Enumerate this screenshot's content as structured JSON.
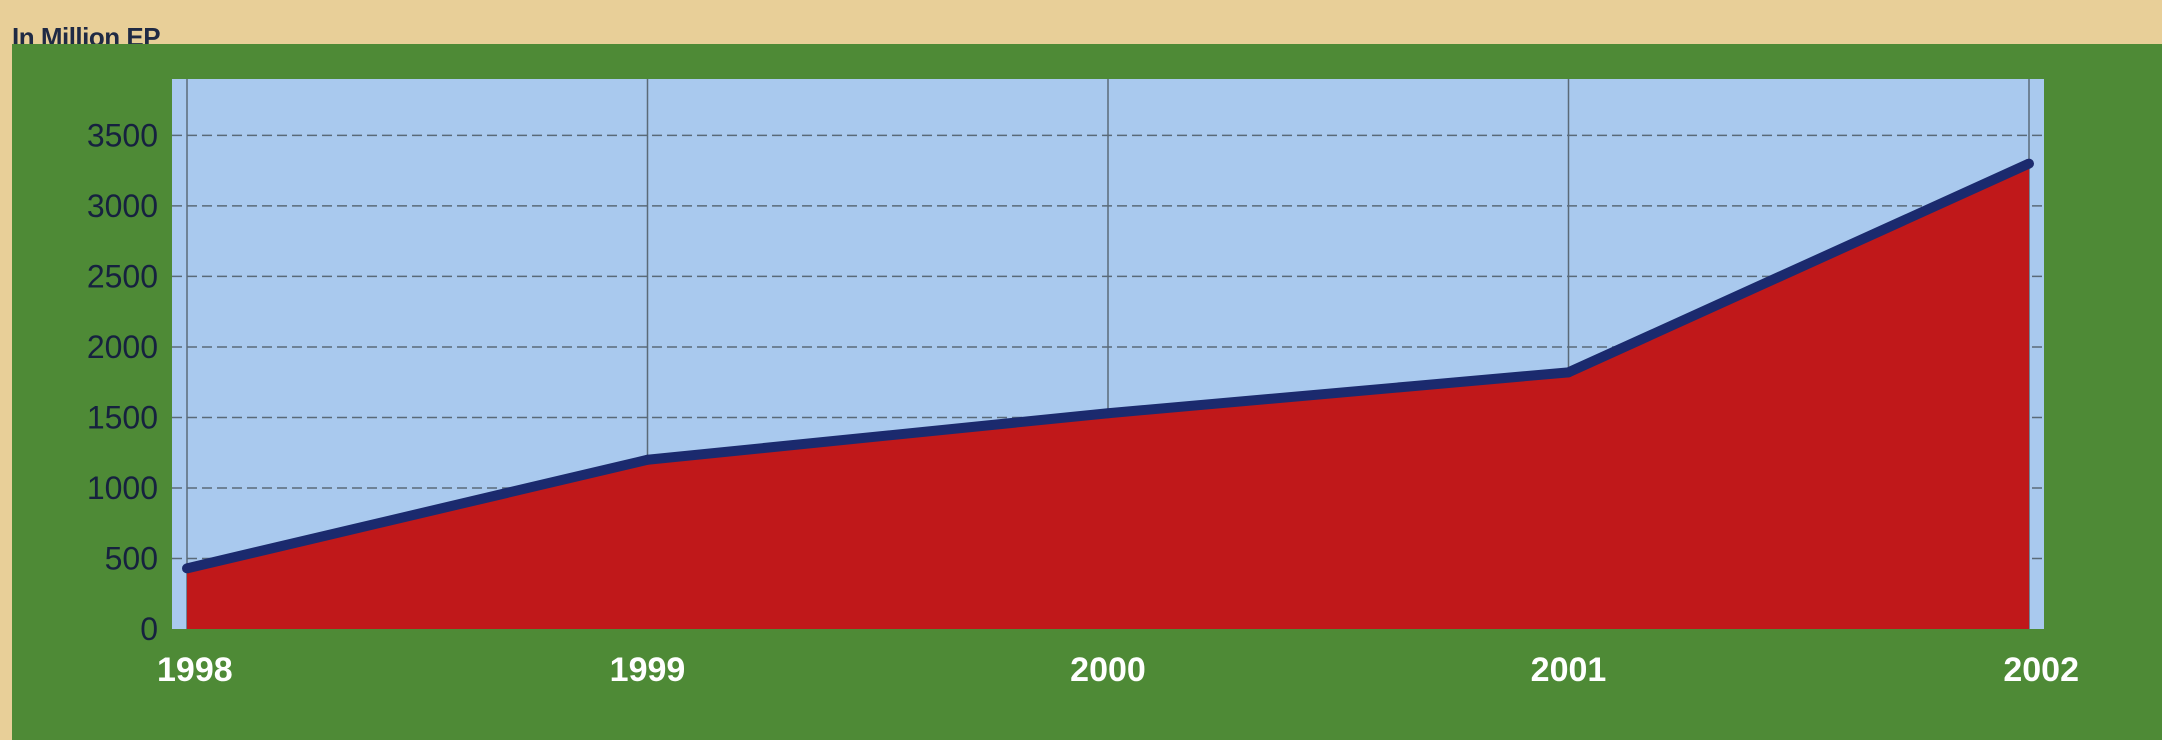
{
  "unit_label": "In Million EP",
  "colors": {
    "background": "#e8cf98",
    "panel": "#4e8a36",
    "plot_area": "#a9c9ee",
    "area_fill": "#c0181a",
    "line": "#1b2a6e",
    "grid": "#5a6a78"
  },
  "chart_data": {
    "type": "area",
    "title": "",
    "xlabel": "",
    "ylabel": "In Million EP",
    "categories": [
      "1998",
      "1999",
      "2000",
      "2001",
      "2002"
    ],
    "series": [
      {
        "values": [
          430,
          1200,
          1530,
          1820,
          3300
        ]
      }
    ],
    "y_ticks": [
      0,
      500,
      1000,
      1500,
      2000,
      2500,
      3000,
      3500
    ],
    "ylim": [
      0,
      3900
    ],
    "grid": true,
    "legend": "none"
  }
}
